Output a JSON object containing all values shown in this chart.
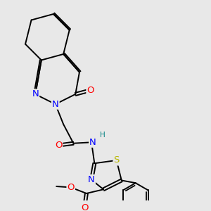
{
  "bg_color": "#e8e8e8",
  "bond_color": "#000000",
  "atom_colors": {
    "N": "#0000ff",
    "O": "#ff0000",
    "S": "#b8b800",
    "H": "#008080",
    "C": "#000000"
  },
  "figsize": [
    3.0,
    3.0
  ],
  "dpi": 100,
  "lw": 1.4,
  "fs": 8.5
}
